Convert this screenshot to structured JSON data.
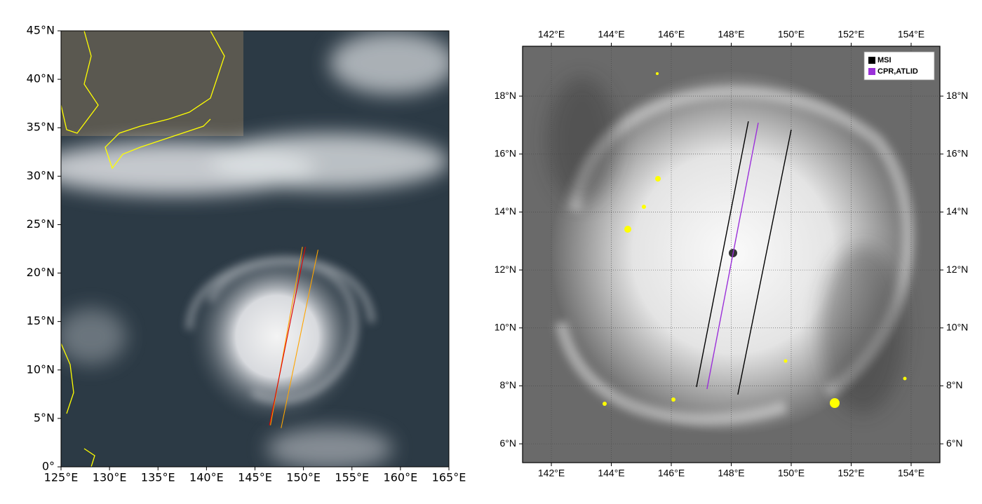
{
  "chart_data": [
    {
      "type": "map",
      "xlim": [
        125,
        165
      ],
      "ylim": [
        0,
        45
      ],
      "xticks": [
        {
          "value": 125,
          "label": "125°E"
        },
        {
          "value": 130,
          "label": "130°E"
        },
        {
          "value": 135,
          "label": "135°E"
        },
        {
          "value": 140,
          "label": "140°E"
        },
        {
          "value": 145,
          "label": "145°E"
        },
        {
          "value": 150,
          "label": "150°E"
        },
        {
          "value": 155,
          "label": "155°E"
        },
        {
          "value": 160,
          "label": "160°E"
        },
        {
          "value": 165,
          "label": "165°E"
        }
      ],
      "yticks": [
        {
          "value": 0,
          "label": "0°"
        },
        {
          "value": 5,
          "label": "5°N"
        },
        {
          "value": 10,
          "label": "10°N"
        },
        {
          "value": 15,
          "label": "15°N"
        },
        {
          "value": 20,
          "label": "20°N"
        },
        {
          "value": 25,
          "label": "25°N"
        },
        {
          "value": 30,
          "label": "30°N"
        },
        {
          "value": 35,
          "label": "35°N"
        },
        {
          "value": 40,
          "label": "40°N"
        },
        {
          "value": 45,
          "label": "45°N"
        }
      ],
      "series": [
        {
          "color": "#ffa500",
          "x": [
            146.6,
            149.9
          ],
          "y": [
            4.3,
            22.7
          ]
        },
        {
          "color": "#e00000",
          "x": [
            146.5,
            150.2
          ],
          "y": [
            4.3,
            22.7
          ]
        },
        {
          "color": "#ffa500",
          "x": [
            147.7,
            151.5
          ],
          "y": [
            4.0,
            22.4
          ]
        }
      ]
    },
    {
      "type": "map",
      "xlim": [
        141.04,
        154.96
      ],
      "ylim": [
        5.35,
        19.72
      ],
      "grid": true,
      "legend": "upper right",
      "xticks": [
        {
          "value": 142,
          "label": "142°E"
        },
        {
          "value": 144,
          "label": "144°E"
        },
        {
          "value": 146,
          "label": "146°E"
        },
        {
          "value": 148,
          "label": "148°E"
        },
        {
          "value": 150,
          "label": "150°E"
        },
        {
          "value": 152,
          "label": "152°E"
        },
        {
          "value": 154,
          "label": "154°E"
        }
      ],
      "yticks": [
        {
          "value": 6,
          "label": "6°N"
        },
        {
          "value": 8,
          "label": "8°N"
        },
        {
          "value": 10,
          "label": "10°N"
        },
        {
          "value": 12,
          "label": "12°N"
        },
        {
          "value": 14,
          "label": "14°N"
        },
        {
          "value": 16,
          "label": "16°N"
        },
        {
          "value": 18,
          "label": "18°N"
        }
      ],
      "series": [
        {
          "name": "MSI",
          "color": "#000000",
          "x": [
            146.84,
            148.57,
            null,
            148.22,
            150.0
          ],
          "y": [
            7.96,
            17.13,
            null,
            7.7,
            16.84
          ]
        },
        {
          "name": "CPR,ATLID",
          "color": "#9b30d9",
          "x": [
            147.19,
            148.9
          ],
          "y": [
            7.89,
            17.08
          ]
        }
      ]
    }
  ]
}
